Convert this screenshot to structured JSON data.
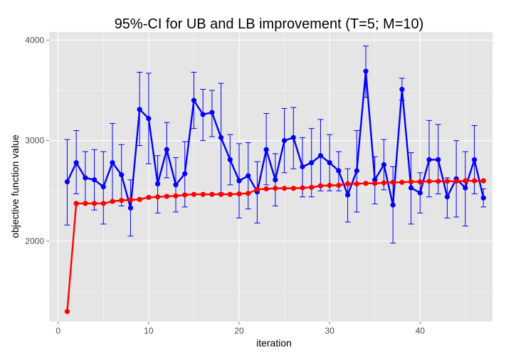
{
  "chart_data": {
    "type": "line",
    "title": "95%-CI for UB and LB improvement (T=5; M=10)",
    "xlabel": "iteration",
    "ylabel": "objective function value",
    "xlim": [
      -1,
      48
    ],
    "ylim": [
      1200,
      4080
    ],
    "x_ticks": [
      0,
      10,
      20,
      30,
      40
    ],
    "y_ticks": [
      2000,
      3000,
      4000
    ],
    "grid": true,
    "colors": {
      "panel": "#e5e5e5",
      "grid_major": "#ffffff",
      "grid_minor": "#f2f2f2",
      "ub": "#0000ff",
      "lb": "#ff0000"
    },
    "x": [
      1,
      2,
      3,
      4,
      5,
      6,
      7,
      8,
      9,
      10,
      11,
      12,
      13,
      14,
      15,
      16,
      17,
      18,
      19,
      20,
      21,
      22,
      23,
      24,
      25,
      26,
      27,
      28,
      29,
      30,
      31,
      32,
      33,
      34,
      35,
      36,
      37,
      38,
      39,
      40,
      41,
      42,
      43,
      44,
      45,
      46,
      47
    ],
    "series": [
      {
        "color": "#0000ff",
        "values": [
          2590,
          2780,
          2630,
          2610,
          2540,
          2780,
          2660,
          2330,
          3310,
          3220,
          2570,
          2910,
          2560,
          2670,
          3400,
          3260,
          3280,
          3030,
          2810,
          2600,
          2650,
          2490,
          2910,
          2610,
          3000,
          3030,
          2740,
          2780,
          2850,
          2780,
          2700,
          2460,
          2700,
          3690,
          2610,
          2760,
          2360,
          3510,
          2530,
          2480,
          2810,
          2810,
          2440,
          2620,
          2530,
          2810,
          2430
        ],
        "ci_low": [
          2160,
          2470,
          2370,
          2310,
          2170,
          2390,
          2350,
          2050,
          2950,
          2770,
          2280,
          2630,
          2290,
          2340,
          3120,
          3000,
          3040,
          2480,
          2560,
          2230,
          2320,
          2180,
          2560,
          2350,
          2680,
          2720,
          2440,
          2440,
          2500,
          2500,
          2500,
          2190,
          2290,
          3430,
          2370,
          2510,
          1980,
          3400,
          2170,
          2280,
          2440,
          2470,
          2230,
          2240,
          2150,
          2470,
          2340
        ],
        "ci_high": [
          3010,
          3100,
          2890,
          2910,
          2890,
          3170,
          2960,
          2610,
          3680,
          3670,
          2850,
          3180,
          2830,
          2990,
          3680,
          3510,
          3500,
          3570,
          3060,
          2970,
          2980,
          2790,
          3270,
          2870,
          3320,
          3330,
          3030,
          3120,
          3210,
          3060,
          2890,
          2720,
          3100,
          3940,
          2840,
          3010,
          2740,
          3620,
          2880,
          2680,
          3200,
          3160,
          2630,
          3000,
          2890,
          3150,
          2520
        ]
      },
      {
        "color": "#ff0000",
        "values": [
          1300,
          2375,
          2375,
          2375,
          2375,
          2395,
          2405,
          2410,
          2415,
          2435,
          2440,
          2445,
          2450,
          2460,
          2465,
          2465,
          2465,
          2465,
          2465,
          2470,
          2475,
          2515,
          2520,
          2525,
          2525,
          2525,
          2530,
          2535,
          2550,
          2555,
          2555,
          2570,
          2570,
          2575,
          2575,
          2580,
          2585,
          2585,
          2590,
          2590,
          2595,
          2595,
          2595,
          2595,
          2600,
          2600,
          2600
        ]
      }
    ]
  }
}
